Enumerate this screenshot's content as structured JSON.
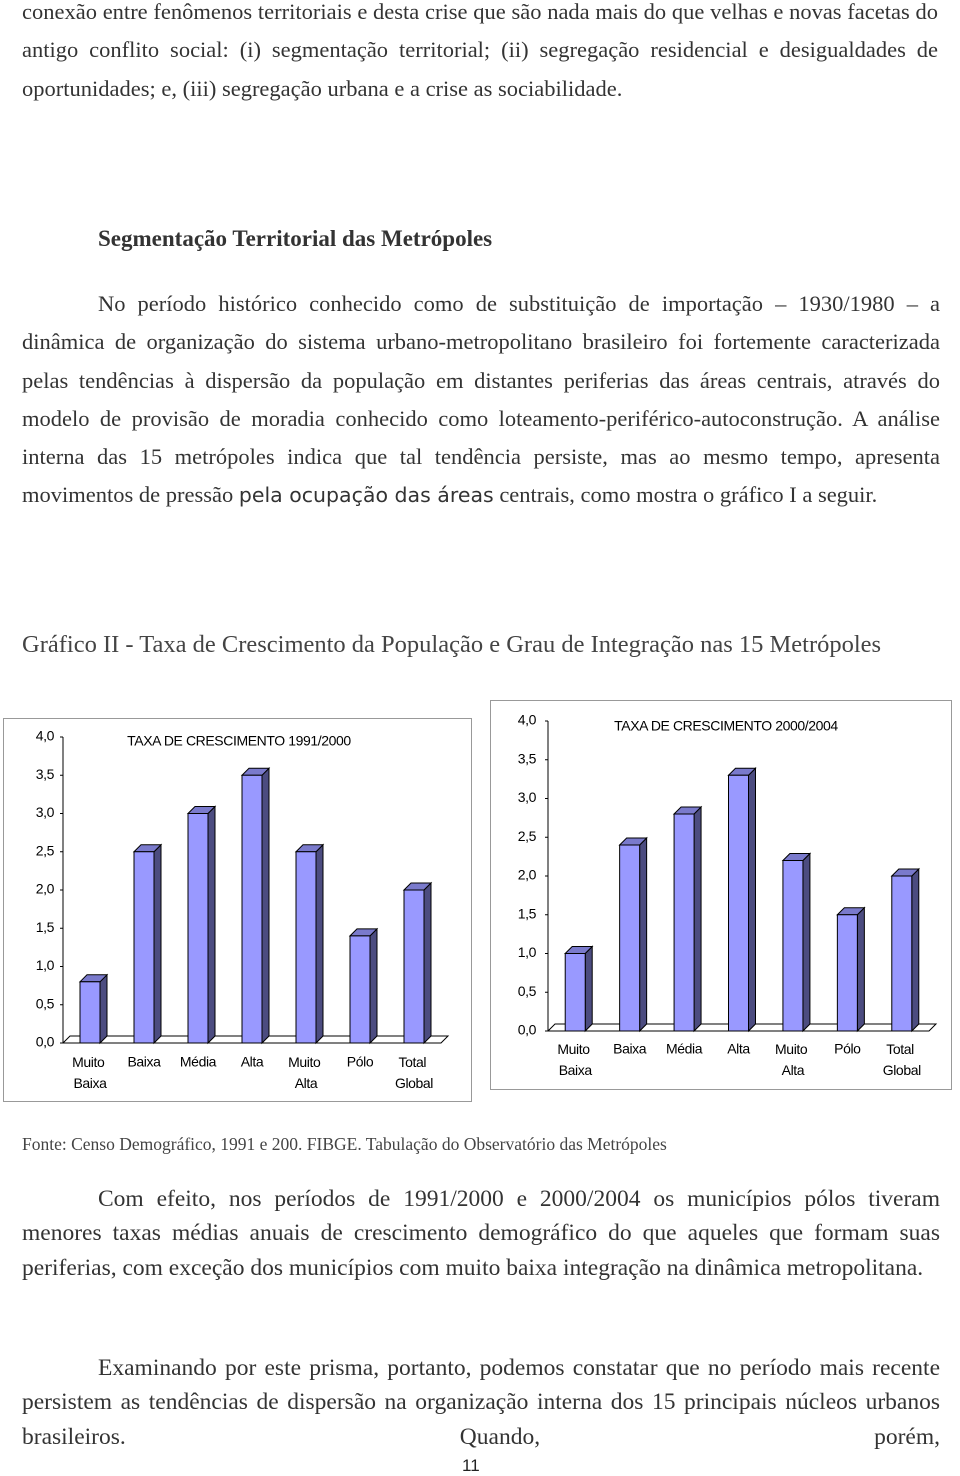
{
  "document": {
    "intro": "conexão entre fenômenos territoriais e desta crise que são nada mais do que velhas e novas facetas do antigo conflito social: (i) segmentação territorial; (ii) segregação residencial  e desigualdades de oportunidades; e, (iii) segregação urbana e a crise as sociabilidade.",
    "heading": "Segmentação Territorial das Metrópoles",
    "paragraph_1": {
      "before": "No período histórico conhecido como de substituição de importação – 1930/1980 – a dinâmica de organização do sistema urbano-metropolitano brasileiro foi fortemente caracterizada pelas tendências à dispersão da população em distantes periferias das áreas centrais, através do modelo de provisão de moradia conhecido como loteamento-periférico-autoconstrução. A análise interna das 15 metrópoles indica que tal tendência persiste, mas ao mesmo tempo, apresenta movimentos de pressão",
      "highlight": "pela ocupação das áreas",
      "after": "centrais, como mostra o gráfico I a seguir."
    },
    "caption": "Gráfico II - Taxa de Crescimento da População e Grau de Integração nas 15 Metrópoles",
    "source": "Fonte: Censo Demográfico, 1991 e 200. FIBGE. Tabulação do Observatório das Metrópoles",
    "paragraph_2": "Com efeito, nos períodos de 1991/2000 e 2000/2004 os municípios pólos tiveram menores taxas médias anuais de crescimento demográfico do que aqueles que formam suas periferias, com exceção dos municípios com muito baixa integração na dinâmica metropolitana.",
    "paragraph_3": "Examinando por este prisma, portanto, podemos constatar que no período mais recente persistem as tendências de dispersão na organização interna dos 15 principais núcleos urbanos brasileiros. Quando, porém,",
    "page_number": "11"
  },
  "chart_data": [
    {
      "type": "bar",
      "title": "TAXA DE CRESCIMENTO 1991/2000",
      "categories": [
        "Muito Baixa",
        "Baixa",
        "Média",
        "Alta",
        "Muito Alta",
        "Pólo",
        "Total Global"
      ],
      "values": [
        0.8,
        2.5,
        3.0,
        3.5,
        2.5,
        1.4,
        2.0
      ],
      "color": "#9999ff",
      "ylim": [
        0,
        4
      ],
      "yticks": [
        {
          "value": 0,
          "label": "0,0"
        },
        {
          "value": 0.5,
          "label": "0,5"
        },
        {
          "value": 1,
          "label": "1,0"
        },
        {
          "value": 1.5,
          "label": "1,5"
        },
        {
          "value": 2,
          "label": "2,0"
        },
        {
          "value": 2.5,
          "label": "2,5"
        },
        {
          "value": 3,
          "label": "3,0"
        },
        {
          "value": 3.5,
          "label": "3,5"
        },
        {
          "value": 4,
          "label": "4,0"
        }
      ]
    },
    {
      "type": "bar",
      "title": "TAXA DE CRESCIMENTO 2000/2004",
      "categories": [
        "Muito Baixa",
        "Baixa",
        "Média",
        "Alta",
        "Muito Alta",
        "Pólo",
        "Total Global"
      ],
      "values": [
        1.0,
        2.4,
        2.8,
        3.3,
        2.2,
        1.5,
        2.0
      ],
      "color": "#9999ff",
      "ylim": [
        0,
        4
      ],
      "yticks": [
        {
          "value": 0,
          "label": "0,0"
        },
        {
          "value": 0.5,
          "label": "0,5"
        },
        {
          "value": 1,
          "label": "1,0"
        },
        {
          "value": 1.5,
          "label": "1,5"
        },
        {
          "value": 2,
          "label": "2,0"
        },
        {
          "value": 2.5,
          "label": "2,5"
        },
        {
          "value": 3,
          "label": "3,0"
        },
        {
          "value": 3.5,
          "label": "3,5"
        },
        {
          "value": 4,
          "label": "4,0"
        }
      ]
    }
  ]
}
